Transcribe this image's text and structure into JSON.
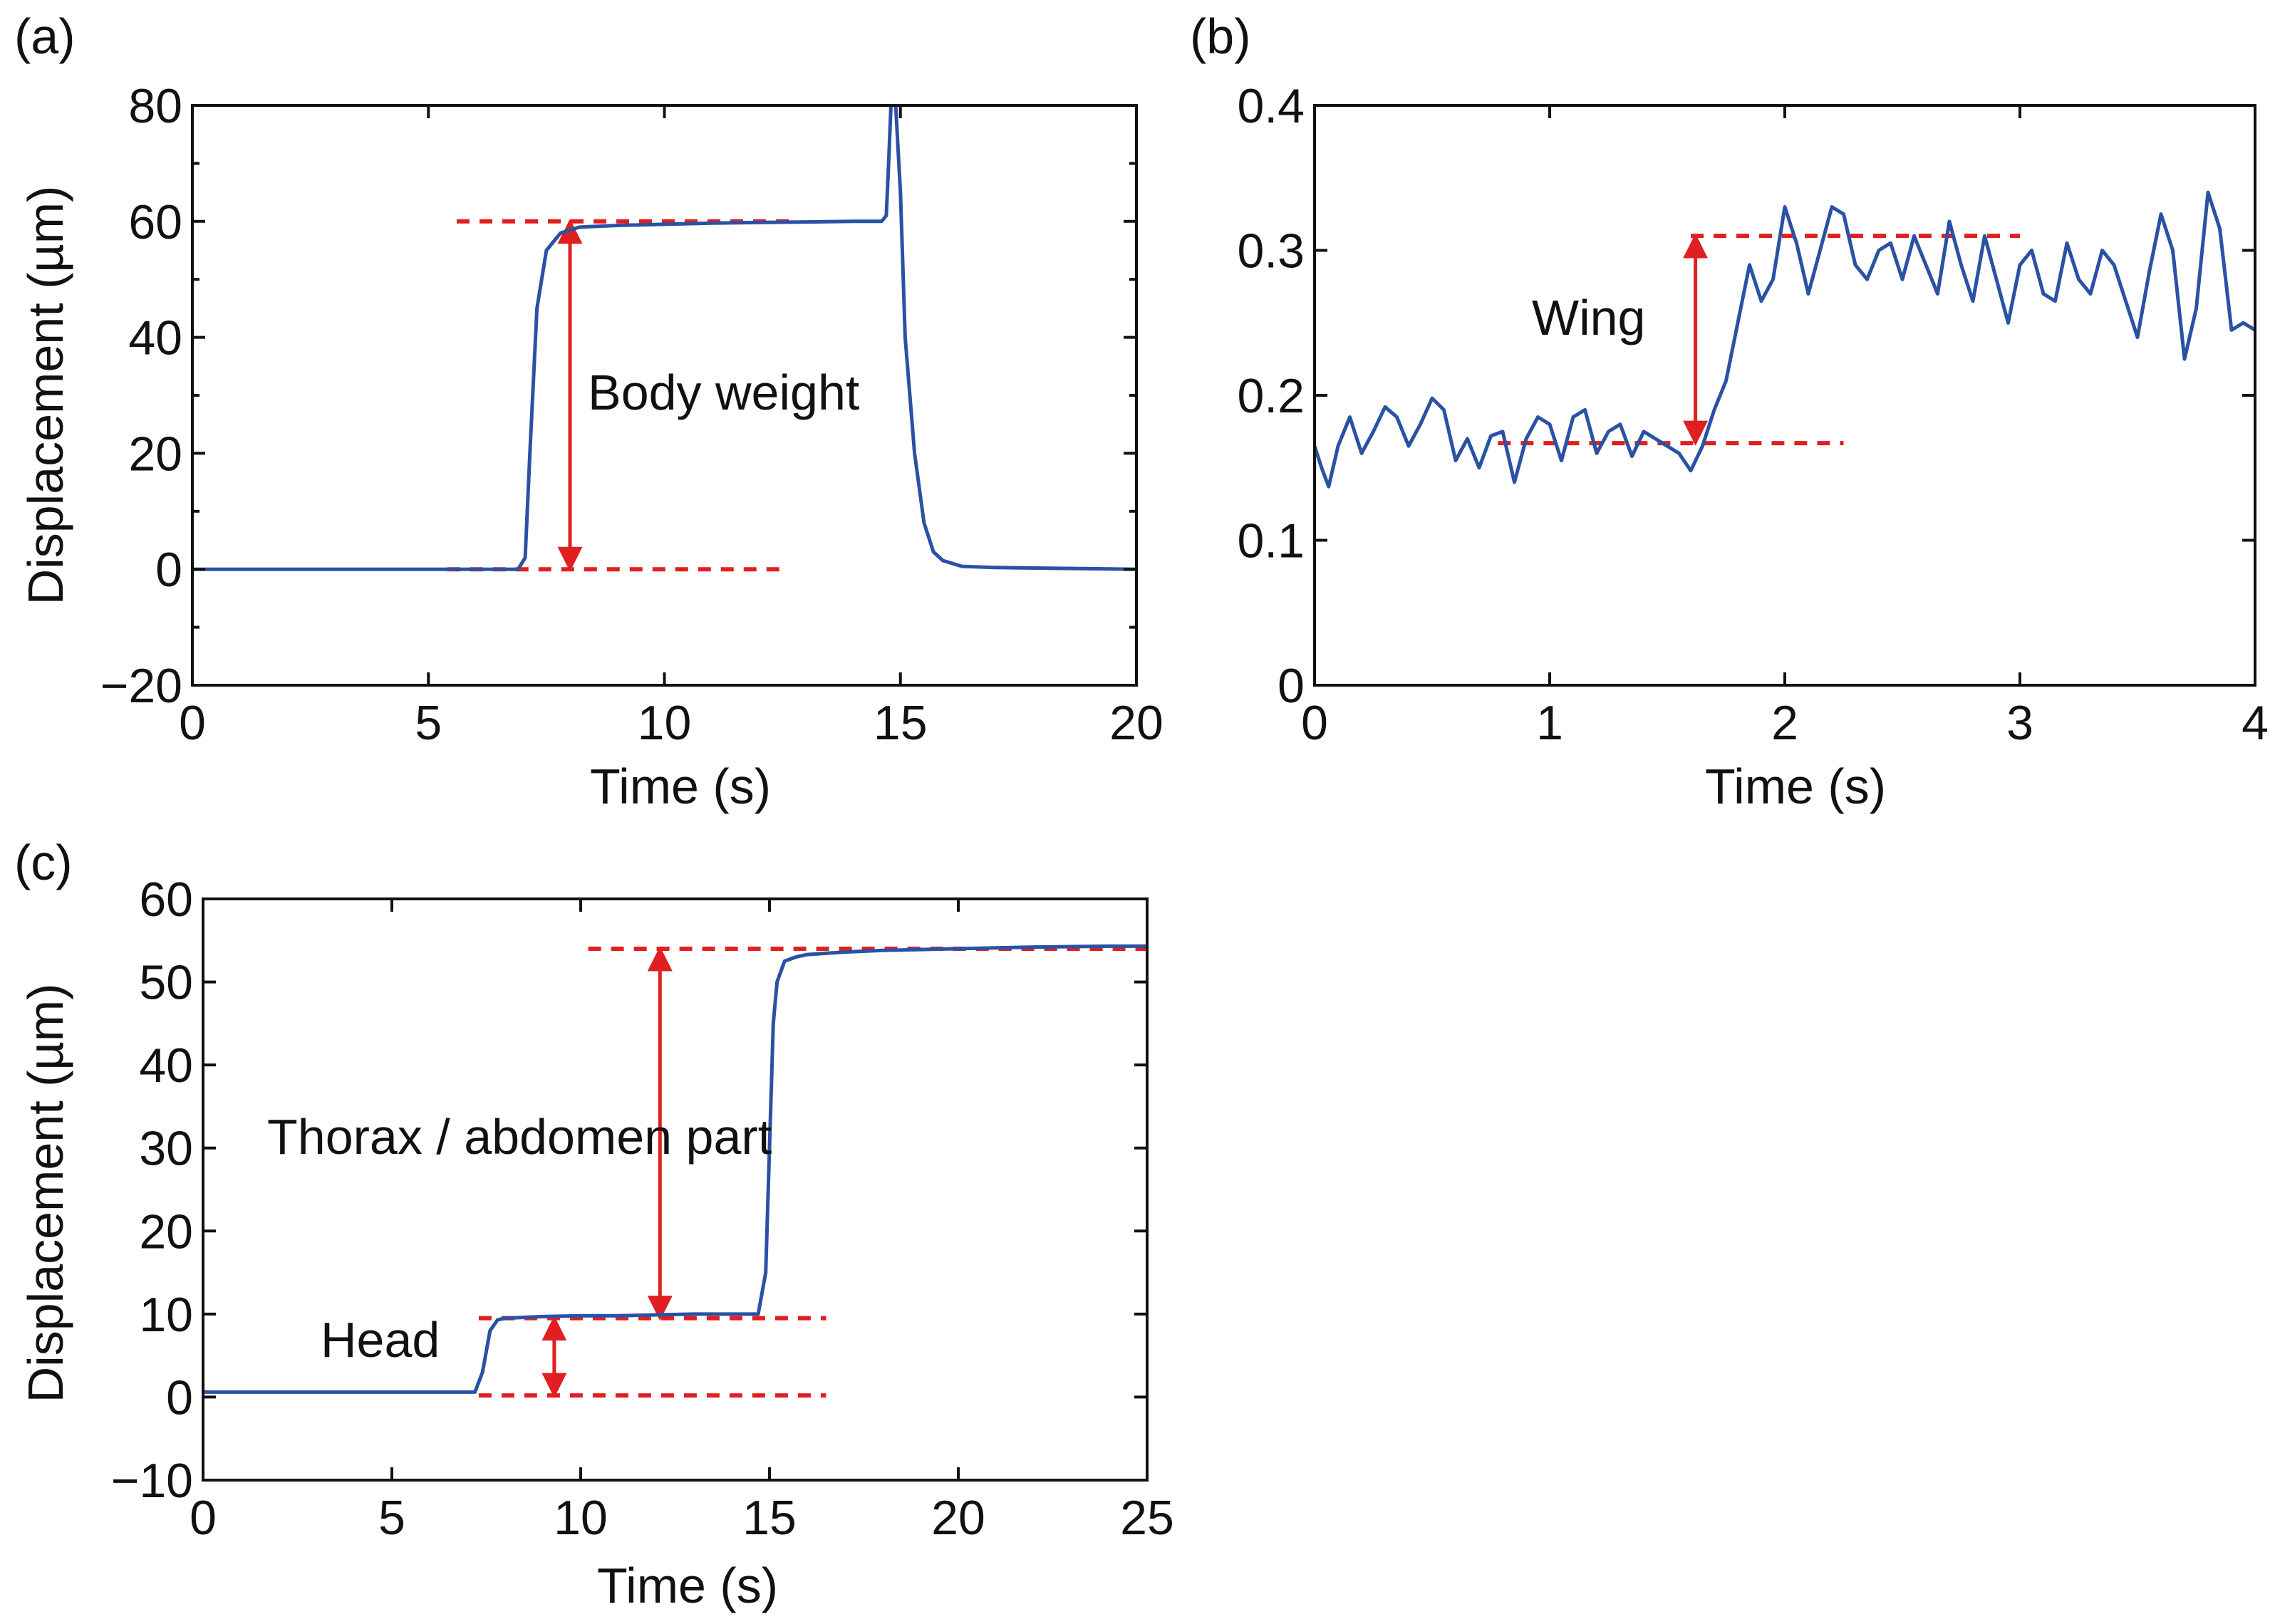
{
  "colors": {
    "series": "#2a52a4",
    "annotation": "#e02020",
    "axis": "#111111"
  },
  "chart_data": [
    {
      "type": "line",
      "panel_label": "(a)",
      "xlabel": "Time (s)",
      "ylabel": "Displacement (µm)",
      "xlim": [
        0,
        20
      ],
      "ylim": [
        -20,
        80
      ],
      "xticks": [
        0,
        5,
        10,
        15,
        20
      ],
      "xtick_labels": [
        "0",
        "5",
        "10",
        "15",
        "20"
      ],
      "yticks": [
        -20,
        0,
        20,
        40,
        60,
        80
      ],
      "ytick_labels": [
        "−20",
        "0",
        "20",
        "40",
        "60",
        "80"
      ],
      "ytick_labels_shown": [
        -20,
        0,
        20,
        40,
        60,
        80
      ],
      "yminor": [
        -10,
        10,
        30,
        50,
        70
      ],
      "series": [
        {
          "name": "displacement",
          "x": [
            0,
            2,
            4,
            6,
            6.9,
            7.05,
            7.15,
            7.3,
            7.5,
            7.8,
            8.2,
            9,
            10,
            11,
            12,
            13,
            14,
            14.6,
            14.7,
            14.75,
            14.8,
            14.9,
            15.0,
            15.1,
            15.3,
            15.5,
            15.7,
            15.9,
            16.3,
            17,
            18,
            19,
            20
          ],
          "y": [
            0,
            0,
            0,
            0,
            0,
            2,
            20,
            45,
            55,
            58,
            59,
            59.3,
            59.5,
            59.7,
            59.8,
            59.9,
            60,
            60,
            61,
            70,
            80,
            80,
            65,
            40,
            20,
            8,
            3,
            1.5,
            0.5,
            0.3,
            0.2,
            0.1,
            0
          ]
        }
      ],
      "ref_lines": [
        {
          "y": 60,
          "x_range": [
            5.6,
            12.8
          ]
        },
        {
          "y": 0,
          "x_range": [
            5.4,
            12.6
          ]
        }
      ],
      "arrows": [
        {
          "x": 8.0,
          "y_range": [
            0,
            60
          ],
          "label": "Body weight",
          "label_pos": [
            8.5,
            30
          ]
        }
      ]
    },
    {
      "type": "line",
      "panel_label": "(b)",
      "xlabel": "Time (s)",
      "ylabel": "",
      "xlim": [
        0,
        4
      ],
      "ylim": [
        0,
        0.4
      ],
      "xticks": [
        0,
        1,
        2,
        3,
        4
      ],
      "xtick_labels": [
        "0",
        "1",
        "2",
        "3",
        "4"
      ],
      "yticks": [
        0,
        0.1,
        0.2,
        0.3,
        0.4
      ],
      "ytick_labels": [
        "0",
        "0.1",
        "0.2",
        "0.3",
        "0.4"
      ],
      "yminor": [],
      "series": [
        {
          "name": "wing displacement",
          "x": [
            0,
            0.03,
            0.06,
            0.1,
            0.15,
            0.2,
            0.25,
            0.3,
            0.35,
            0.4,
            0.45,
            0.5,
            0.55,
            0.6,
            0.65,
            0.7,
            0.75,
            0.8,
            0.85,
            0.9,
            0.95,
            1.0,
            1.05,
            1.1,
            1.15,
            1.2,
            1.25,
            1.3,
            1.35,
            1.4,
            1.45,
            1.5,
            1.55,
            1.6,
            1.65,
            1.7,
            1.75,
            1.8,
            1.85,
            1.9,
            1.95,
            2.0,
            2.05,
            2.1,
            2.15,
            2.2,
            2.25,
            2.3,
            2.35,
            2.4,
            2.45,
            2.5,
            2.55,
            2.6,
            2.65,
            2.7,
            2.75,
            2.8,
            2.85,
            2.9,
            2.95,
            3.0,
            3.05,
            3.1,
            3.15,
            3.2,
            3.25,
            3.3,
            3.35,
            3.4,
            3.45,
            3.5,
            3.55,
            3.6,
            3.65,
            3.7,
            3.75,
            3.8,
            3.85,
            3.9,
            3.95,
            4.0
          ],
          "y": [
            0.165,
            0.15,
            0.137,
            0.165,
            0.185,
            0.16,
            0.175,
            0.192,
            0.185,
            0.165,
            0.18,
            0.198,
            0.19,
            0.155,
            0.17,
            0.15,
            0.172,
            0.175,
            0.14,
            0.17,
            0.185,
            0.18,
            0.155,
            0.185,
            0.19,
            0.16,
            0.175,
            0.18,
            0.158,
            0.175,
            0.17,
            0.165,
            0.16,
            0.148,
            0.165,
            0.19,
            0.21,
            0.25,
            0.29,
            0.265,
            0.28,
            0.33,
            0.305,
            0.27,
            0.3,
            0.33,
            0.325,
            0.29,
            0.28,
            0.3,
            0.305,
            0.28,
            0.31,
            0.29,
            0.27,
            0.32,
            0.29,
            0.265,
            0.31,
            0.28,
            0.25,
            0.29,
            0.3,
            0.27,
            0.265,
            0.305,
            0.28,
            0.27,
            0.3,
            0.29,
            0.265,
            0.24,
            0.285,
            0.325,
            0.3,
            0.225,
            0.26,
            0.34,
            0.315,
            0.245,
            0.25,
            0.245
          ]
        }
      ],
      "ref_lines": [
        {
          "y": 0.31,
          "x_range": [
            1.6,
            3.0
          ]
        },
        {
          "y": 0.167,
          "x_range": [
            0.78,
            2.25
          ]
        }
      ],
      "arrows": [
        {
          "x": 1.62,
          "y_range": [
            0.167,
            0.31
          ],
          "label": "Wing",
          "label_pos": [
            1.2,
            0.25
          ]
        }
      ]
    },
    {
      "type": "line",
      "panel_label": "(c)",
      "xlabel": "Time (s)",
      "ylabel": "Displacement (µm)",
      "xlim": [
        0,
        25
      ],
      "ylim": [
        -10,
        60
      ],
      "xticks": [
        0,
        5,
        10,
        15,
        20,
        25
      ],
      "xtick_labels": [
        "0",
        "5",
        "10",
        "15",
        "20",
        "25"
      ],
      "yticks": [
        -10,
        0,
        10,
        20,
        30,
        40,
        50,
        60
      ],
      "ytick_labels": [
        "−10",
        "0",
        "10",
        "20",
        "30",
        "40",
        "50",
        "60"
      ],
      "yminor": [],
      "series": [
        {
          "name": "displacement",
          "x": [
            0,
            2,
            4,
            6,
            7.2,
            7.4,
            7.6,
            7.8,
            8.0,
            8.5,
            9,
            10,
            11,
            12,
            13,
            14,
            14.7,
            14.9,
            15.0,
            15.1,
            15.2,
            15.4,
            15.7,
            16,
            17,
            18,
            20,
            22,
            24,
            25
          ],
          "y": [
            0.6,
            0.6,
            0.6,
            0.6,
            0.6,
            3,
            8,
            9.3,
            9.5,
            9.6,
            9.7,
            9.8,
            9.8,
            9.9,
            10,
            10,
            10,
            15,
            30,
            45,
            50,
            52.5,
            53,
            53.3,
            53.6,
            53.8,
            54,
            54.2,
            54.3,
            54.3
          ]
        }
      ],
      "ref_lines": [
        {
          "y": 54,
          "x_range": [
            10.2,
            25
          ]
        },
        {
          "y": 9.5,
          "x_range": [
            7.3,
            16.5
          ]
        },
        {
          "y": 0.2,
          "x_range": [
            7.3,
            16.5
          ]
        }
      ],
      "arrows": [
        {
          "x": 12.1,
          "y_range": [
            9.5,
            54
          ],
          "label": "Thorax / abdomen part",
          "label_pos": [
            9.5,
            31
          ]
        },
        {
          "x": 9.3,
          "y_range": [
            0.2,
            9.5
          ],
          "label": "Head",
          "label_pos": [
            6.8,
            6.7
          ]
        }
      ]
    }
  ]
}
